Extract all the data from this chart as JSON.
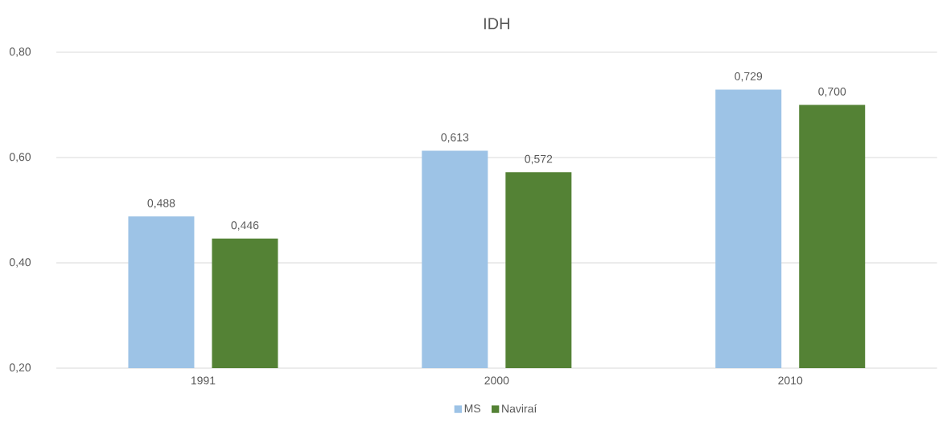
{
  "chart_data": {
    "type": "bar",
    "title": "IDH",
    "categories": [
      "1991",
      "2000",
      "2010"
    ],
    "series": [
      {
        "name": "MS",
        "color": "#9dc3e6",
        "values": [
          0.488,
          0.613,
          0.729
        ],
        "value_labels": [
          "0,488",
          "0,613",
          "0,729"
        ]
      },
      {
        "name": "Naviraí",
        "color": "#548235",
        "values": [
          0.446,
          0.572,
          0.7
        ],
        "value_labels": [
          "0,446",
          "0,572",
          "0,700"
        ]
      }
    ],
    "ylim": [
      0.2,
      0.8
    ],
    "yticks": [
      {
        "value": 0.2,
        "label": "0,20"
      },
      {
        "value": 0.4,
        "label": "0,40"
      },
      {
        "value": 0.6,
        "label": "0,60"
      },
      {
        "value": 0.8,
        "label": "0,80"
      }
    ],
    "grid": "y",
    "legend": "bottom"
  }
}
